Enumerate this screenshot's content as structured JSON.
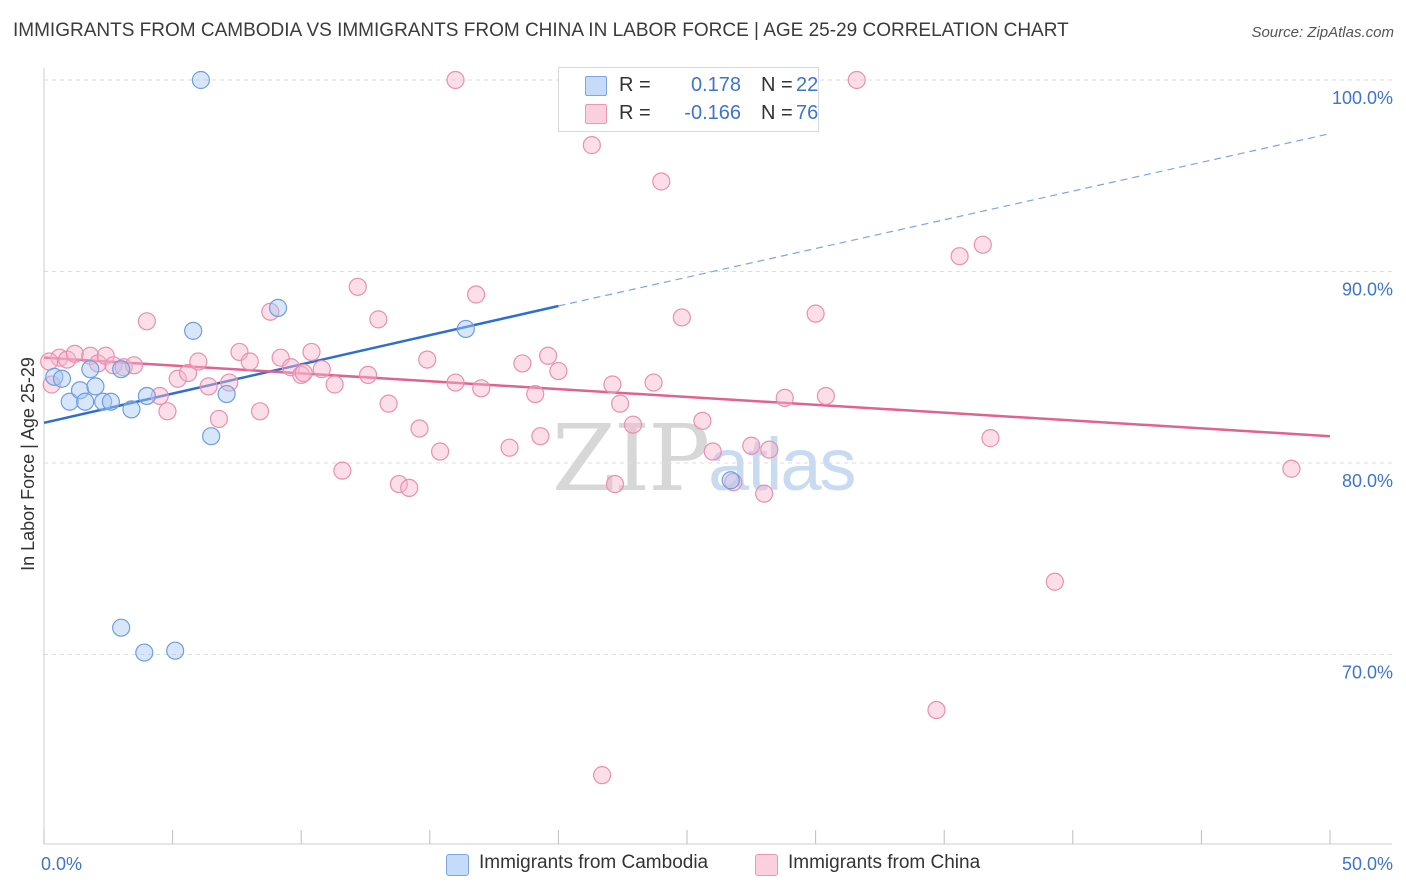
{
  "title": "IMMIGRANTS FROM CAMBODIA VS IMMIGRANTS FROM CHINA IN LABOR FORCE | AGE 25-29 CORRELATION CHART",
  "source": "Source: ZipAtlas.com",
  "watermark": {
    "zip": "ZIP",
    "atlas": "atlas"
  },
  "stats": [
    {
      "r_label": "R =",
      "r_value": "0.178",
      "n_label": "N =",
      "n_value": "22",
      "color": "#a9c8f4"
    },
    {
      "r_label": "R =",
      "r_value": "-0.166",
      "n_label": "N =",
      "n_value": "76",
      "color": "#f6b6cb"
    }
  ],
  "legend": [
    {
      "label": "Immigrants from Cambodia",
      "color": "#a9c8f4"
    },
    {
      "label": "Immigrants from China",
      "color": "#f6b6cb"
    }
  ],
  "chart_data": {
    "type": "scatter",
    "title": "IMMIGRANTS FROM CAMBODIA VS IMMIGRANTS FROM CHINA IN LABOR FORCE | AGE 25-29 CORRELATION CHART",
    "xlabel": "",
    "ylabel": "In Labor Force | Age 25-29",
    "xlim": [
      0,
      50
    ],
    "ylim": [
      60,
      102
    ],
    "x_tick_labels": [
      "0.0%",
      "50.0%"
    ],
    "y_ticks": [
      70,
      80,
      90,
      100
    ],
    "y_tick_labels": [
      "70.0%",
      "80.0%",
      "90.0%",
      "100.0%"
    ],
    "grid": true,
    "legend_position": "bottom-center",
    "series": [
      {
        "name": "Immigrants from Cambodia",
        "color": "#5b8fd9",
        "fill": "#a9c8f4",
        "r": 0.178,
        "n": 22,
        "trend": {
          "x_start": 0.0,
          "y_start": 82.1,
          "x_end": 20.0,
          "y_end": 88.2,
          "x_dash_end": 50.0,
          "y_dash_end": 97.2
        },
        "points": [
          [
            0.4,
            84.5
          ],
          [
            0.7,
            84.4
          ],
          [
            1.0,
            83.2
          ],
          [
            1.4,
            83.8
          ],
          [
            1.6,
            83.2
          ],
          [
            1.8,
            84.9
          ],
          [
            2.0,
            84.0
          ],
          [
            2.3,
            83.2
          ],
          [
            2.6,
            83.2
          ],
          [
            3.0,
            71.4
          ],
          [
            3.4,
            82.8
          ],
          [
            3.9,
            70.1
          ],
          [
            4.0,
            83.5
          ],
          [
            5.1,
            70.2
          ],
          [
            5.8,
            86.9
          ],
          [
            6.1,
            100.0
          ],
          [
            6.5,
            81.4
          ],
          [
            7.1,
            83.6
          ],
          [
            9.1,
            88.1
          ],
          [
            16.4,
            87.0
          ],
          [
            3.0,
            84.9
          ],
          [
            26.7,
            79.1
          ]
        ]
      },
      {
        "name": "Immigrants from China",
        "color": "#e8759c",
        "fill": "#f6b6cb",
        "r": -0.166,
        "n": 76,
        "trend": {
          "x_start": 0.0,
          "y_start": 85.5,
          "x_end": 50.0,
          "y_end": 81.4
        },
        "points": [
          [
            0.3,
            84.1
          ],
          [
            0.6,
            85.5
          ],
          [
            0.9,
            85.4
          ],
          [
            1.2,
            85.7
          ],
          [
            1.8,
            85.6
          ],
          [
            2.1,
            85.2
          ],
          [
            2.4,
            85.6
          ],
          [
            2.7,
            85.1
          ],
          [
            3.1,
            85.0
          ],
          [
            3.5,
            85.1
          ],
          [
            4.0,
            87.4
          ],
          [
            4.5,
            83.5
          ],
          [
            4.8,
            82.7
          ],
          [
            5.2,
            84.4
          ],
          [
            5.6,
            84.7
          ],
          [
            6.0,
            85.3
          ],
          [
            6.4,
            84.0
          ],
          [
            6.8,
            82.3
          ],
          [
            7.2,
            84.2
          ],
          [
            7.6,
            85.8
          ],
          [
            8.0,
            85.3
          ],
          [
            8.4,
            82.7
          ],
          [
            8.8,
            87.9
          ],
          [
            9.2,
            85.5
          ],
          [
            9.6,
            85.0
          ],
          [
            10.0,
            84.6
          ],
          [
            10.4,
            85.8
          ],
          [
            10.8,
            84.9
          ],
          [
            11.3,
            84.1
          ],
          [
            11.6,
            79.6
          ],
          [
            12.2,
            89.2
          ],
          [
            12.6,
            84.6
          ],
          [
            13.0,
            87.5
          ],
          [
            13.4,
            83.1
          ],
          [
            13.8,
            78.9
          ],
          [
            14.2,
            78.7
          ],
          [
            14.6,
            81.8
          ],
          [
            14.9,
            85.4
          ],
          [
            15.4,
            80.6
          ],
          [
            16.0,
            84.2
          ],
          [
            16.0,
            100.0
          ],
          [
            16.8,
            88.8
          ],
          [
            17.0,
            83.9
          ],
          [
            18.1,
            80.8
          ],
          [
            18.6,
            85.2
          ],
          [
            19.1,
            83.6
          ],
          [
            19.3,
            81.4
          ],
          [
            19.6,
            85.6
          ],
          [
            20.0,
            84.8
          ],
          [
            21.3,
            96.6
          ],
          [
            22.1,
            84.1
          ],
          [
            22.4,
            83.1
          ],
          [
            22.9,
            82.0
          ],
          [
            22.2,
            78.9
          ],
          [
            23.7,
            84.2
          ],
          [
            24.0,
            94.7
          ],
          [
            24.8,
            87.6
          ],
          [
            25.6,
            82.2
          ],
          [
            26.0,
            80.6
          ],
          [
            26.8,
            79.0
          ],
          [
            27.5,
            80.9
          ],
          [
            28.0,
            78.4
          ],
          [
            28.2,
            80.7
          ],
          [
            28.8,
            83.4
          ],
          [
            30.0,
            87.8
          ],
          [
            30.4,
            83.5
          ],
          [
            31.6,
            100.0
          ],
          [
            34.7,
            67.1
          ],
          [
            35.6,
            90.8
          ],
          [
            36.5,
            91.4
          ],
          [
            36.8,
            81.3
          ],
          [
            39.3,
            73.8
          ],
          [
            48.5,
            79.7
          ],
          [
            21.7,
            63.7
          ],
          [
            0.2,
            85.3
          ],
          [
            10.1,
            84.7
          ]
        ]
      }
    ]
  }
}
